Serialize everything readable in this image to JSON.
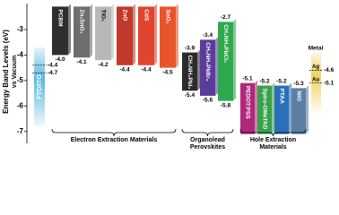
{
  "chart_data": {
    "type": "floating-bar",
    "y_label": "Energy Band Levels (eV)",
    "y_sublabel": "vs Vacuum",
    "ylim": [
      -7.5,
      -2
    ],
    "yticks": [
      -3,
      -4,
      -5,
      -6,
      -7
    ],
    "electrode": {
      "name": "FTO/ITO",
      "top": -3.7,
      "bottom": -6.8,
      "levels": [
        -4.4,
        -4.7
      ],
      "color": "#5bb8e0"
    },
    "groups": [
      {
        "name": "Electron Extraction Materials",
        "bars": [
          {
            "name": "PCBM",
            "top": -2.1,
            "bottom": -4,
            "bottom_label": "-4.0",
            "color": "#2e2e2e"
          },
          {
            "name": "Zn₂SnO₄",
            "top": -2.1,
            "bottom": -4.1,
            "color": "#6e6e6e"
          },
          {
            "name": "TiO₂",
            "top": -2.1,
            "bottom": -4.2,
            "color": "#b8b8b8"
          },
          {
            "name": "ZnO",
            "top": -2.1,
            "bottom": -4.4,
            "color": "#c0392b"
          },
          {
            "name": "CdS",
            "top": -2.1,
            "bottom": -4.4,
            "color": "#e0452f"
          },
          {
            "name": "SnO₂",
            "top": -2.1,
            "bottom": -4.5,
            "color": "#e8552c"
          }
        ]
      },
      {
        "name": "Organolead Perovskites",
        "bars": [
          {
            "name": "CH₃NH₃PbI₃",
            "top": -3.9,
            "bottom": -5.4,
            "color": "#2b2b2b"
          },
          {
            "name": "CH₃NH₃PbBr₃",
            "top": -3.4,
            "bottom": -5.6,
            "color": "#5a3d9a"
          },
          {
            "name": "CH₃NH₃PbCl₃",
            "top": -2.7,
            "bottom": -5.8,
            "color": "#2fa84f"
          }
        ]
      },
      {
        "name": "Hole Extraction Materials",
        "bars": [
          {
            "name": "PEDOT:PSS",
            "top": -5.1,
            "bottom": -7.1,
            "color": "#b0287c"
          },
          {
            "name": "Spiro-OMeTAD",
            "top": -5.2,
            "bottom": -7.1,
            "color": "#3aa14a"
          },
          {
            "name": "PTAA",
            "top": -5.2,
            "bottom": -7.1,
            "color": "#2a6fb8"
          },
          {
            "name": "NiO",
            "top": -5.3,
            "bottom": -7.1,
            "color": "#5d7fa3"
          }
        ]
      }
    ],
    "metal": {
      "name": "Metal",
      "top": -3.9,
      "bottom": -6.2,
      "color": "#f0d060",
      "levels": [
        {
          "name": "Ag",
          "value": -4.6
        },
        {
          "name": "Au",
          "value": -5.1
        }
      ]
    }
  }
}
